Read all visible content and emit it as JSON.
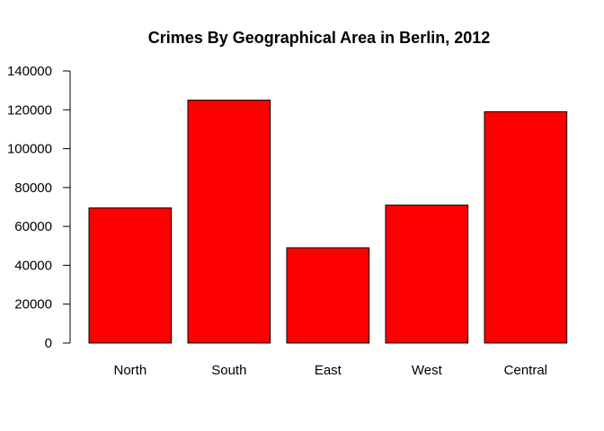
{
  "chart_data": {
    "type": "bar",
    "title": "Crimes By Geographical Area in Berlin, 2012",
    "xlabel": "",
    "ylabel": "",
    "categories": [
      "North",
      "South",
      "East",
      "West",
      "Central"
    ],
    "values": [
      69500,
      125000,
      49000,
      71000,
      119000
    ],
    "ylim": [
      0,
      140000
    ],
    "yticks": [
      0,
      20000,
      40000,
      60000,
      80000,
      100000,
      120000,
      140000
    ],
    "ytick_labels": [
      "0",
      "20000",
      "40000",
      "60000",
      "80000",
      "100000",
      "120000",
      "140000"
    ],
    "bar_color": "#fe0000",
    "grid": false,
    "legend": "none"
  }
}
